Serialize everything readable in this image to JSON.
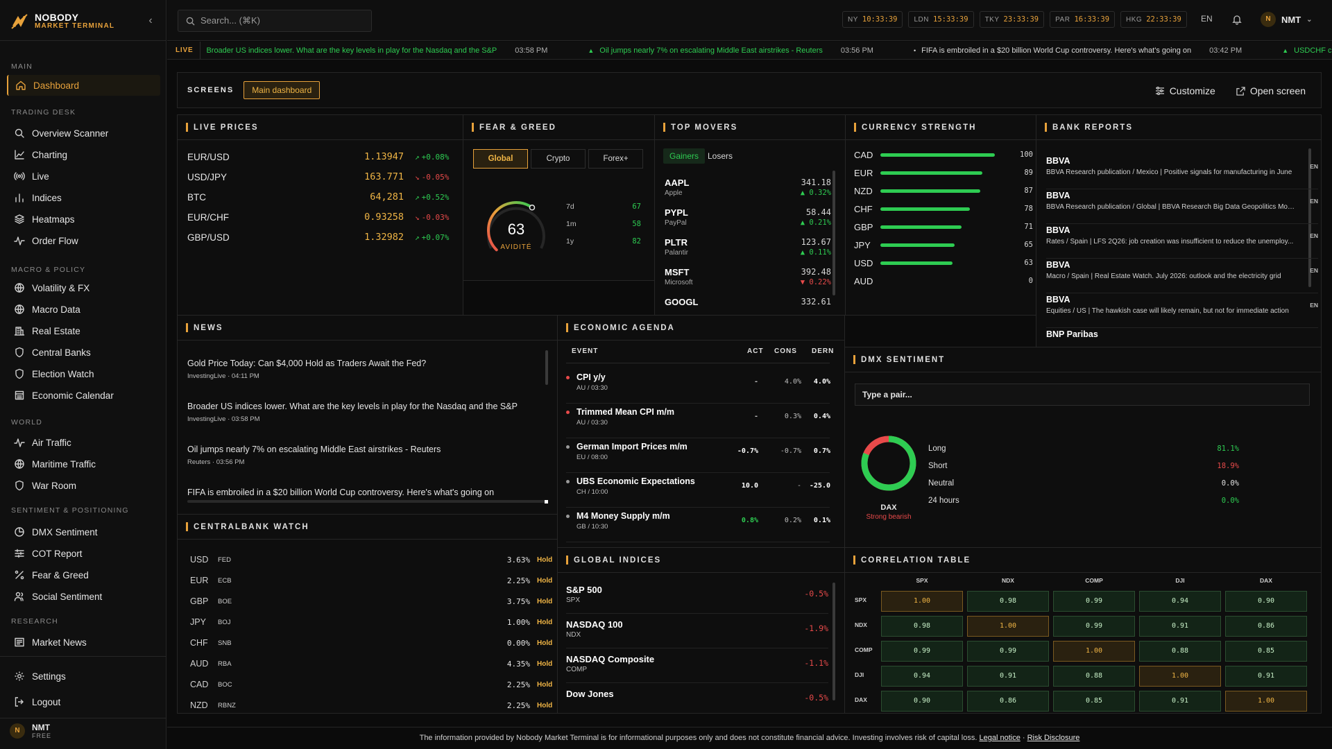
{
  "brand": {
    "name": "NOBODY",
    "sub": "MARKET TERMINAL"
  },
  "nav": {
    "sections": [
      "MAIN",
      "TRADING DESK",
      "MACRO & POLICY",
      "WORLD",
      "SENTIMENT & POSITIONING",
      "RESEARCH"
    ],
    "items": [
      "Dashboard",
      "Overview Scanner",
      "Charting",
      "Live",
      "Indices",
      "Heatmaps",
      "Order Flow",
      "Volatility & FX",
      "Macro Data",
      "Real Estate",
      "Central Banks",
      "Election Watch",
      "Economic Calendar",
      "Air Traffic",
      "Maritime Traffic",
      "War Room",
      "DMX Sentiment",
      "COT Report",
      "Fear & Greed",
      "Social Sentiment",
      "Market News"
    ],
    "settings": "Settings",
    "logout": "Logout"
  },
  "user": {
    "initial": "N",
    "name": "NMT",
    "plan": "FREE"
  },
  "search": {
    "placeholder": "Search... (⌘K)"
  },
  "clocks": [
    {
      "city": "NY",
      "time": "10:33:39"
    },
    {
      "city": "LDN",
      "time": "15:33:39"
    },
    {
      "city": "TKY",
      "time": "23:33:39"
    },
    {
      "city": "PAR",
      "time": "16:33:39"
    },
    {
      "city": "HKG",
      "time": "22:33:39"
    }
  ],
  "lang": "EN",
  "ticker": {
    "tag": "LIVE",
    "items": [
      {
        "text": "Broader US indices lower. What are the key levels in play for the Nasdaq and the S&P",
        "time": "03:58 PM"
      },
      {
        "text": "Oil jumps nearly 7% on escalating Middle East airstrikes - Reuters",
        "time": "03:56 PM"
      },
      {
        "text": "FIFA is embroiled in a $20 billion World Cup controversy. Here's what's going on",
        "time": "03:42 PM"
      },
      {
        "text": "USDCHF cont",
        "time": ""
      }
    ]
  },
  "screens": {
    "label": "SCREENS",
    "active": "Main dashboard",
    "customize": "Customize",
    "open": "Open screen"
  },
  "live_prices": {
    "title": "LIVE PRICES",
    "rows": [
      {
        "sym": "EUR/USD",
        "price": "1.13947",
        "chg": "+0.08%",
        "dir": "up"
      },
      {
        "sym": "USD/JPY",
        "price": "163.771",
        "chg": "-0.05%",
        "dir": "dn"
      },
      {
        "sym": "BTC",
        "price": "64,281",
        "chg": "+0.52%",
        "dir": "up"
      },
      {
        "sym": "EUR/CHF",
        "price": "0.93258",
        "chg": "-0.03%",
        "dir": "dn"
      },
      {
        "sym": "GBP/USD",
        "price": "1.32982",
        "chg": "+0.07%",
        "dir": "up"
      }
    ]
  },
  "fear_greed": {
    "title": "FEAR & GREED",
    "tabs": [
      "Global",
      "Crypto",
      "Forex+"
    ],
    "value": "63",
    "label": "AVIDITÉ",
    "gauge_fraction": 0.63,
    "history": [
      {
        "k": "7d",
        "v": "67"
      },
      {
        "k": "1m",
        "v": "58"
      },
      {
        "k": "1y",
        "v": "82"
      }
    ]
  },
  "top_movers": {
    "title": "TOP MOVERS",
    "tabs": [
      "Gainers",
      "Losers"
    ],
    "rows": [
      {
        "sym": "AAPL",
        "name": "Apple",
        "price": "341.18",
        "chg": "▲ 0.32%",
        "dir": "up"
      },
      {
        "sym": "PYPL",
        "name": "PayPal",
        "price": "58.44",
        "chg": "▲ 0.21%",
        "dir": "up"
      },
      {
        "sym": "PLTR",
        "name": "Palantir",
        "price": "123.67",
        "chg": "▲ 0.11%",
        "dir": "up"
      },
      {
        "sym": "MSFT",
        "name": "Microsoft",
        "price": "392.48",
        "chg": "▼ 0.22%",
        "dir": "dn"
      },
      {
        "sym": "GOOGL",
        "name": "",
        "price": "332.61",
        "chg": "",
        "dir": "up"
      }
    ]
  },
  "currency_strength": {
    "title": "CURRENCY STRENGTH",
    "rows": [
      {
        "ccy": "CAD",
        "v": 100
      },
      {
        "ccy": "EUR",
        "v": 89
      },
      {
        "ccy": "NZD",
        "v": 87
      },
      {
        "ccy": "CHF",
        "v": 78
      },
      {
        "ccy": "GBP",
        "v": 71
      },
      {
        "ccy": "JPY",
        "v": 65
      },
      {
        "ccy": "USD",
        "v": 63
      },
      {
        "ccy": "AUD",
        "v": 0
      }
    ]
  },
  "bank_reports": {
    "title": "BANK REPORTS",
    "rows": [
      {
        "bank": "BBVA",
        "desc": "BBVA Research publication / Mexico | Positive signals for manufacturing in June",
        "lang": "EN"
      },
      {
        "bank": "BBVA",
        "desc": "BBVA Research publication / Global | BBVA Research Big Data Geopolitics Mon...",
        "lang": "EN"
      },
      {
        "bank": "BBVA",
        "desc": "Rates / Spain | LFS 2Q26: job creation was insufficient to reduce the unemploy...",
        "lang": "EN"
      },
      {
        "bank": "BBVA",
        "desc": "Macro / Spain | Real Estate Watch. July 2026: outlook and the electricity grid",
        "lang": "EN"
      },
      {
        "bank": "BBVA",
        "desc": "Equities / US | The hawkish case will likely remain, but not for immediate action",
        "lang": "EN"
      },
      {
        "bank": "BNP Paribas",
        "desc": "",
        "lang": ""
      }
    ]
  },
  "news": {
    "title": "NEWS",
    "rows": [
      {
        "h": "Gold Price Today: Can $4,000 Hold as Traders Await the Fed?",
        "m": "InvestingLive · 04:11 PM"
      },
      {
        "h": "Broader US indices lower. What are the key levels in play for the Nasdaq and the S&P",
        "m": "InvestingLive · 03:58 PM"
      },
      {
        "h": "Oil jumps nearly 7% on escalating Middle East airstrikes - Reuters",
        "m": "Reuters · 03:56 PM"
      },
      {
        "h": "FIFA is embroiled in a $20 billion World Cup controversy. Here's what's going on",
        "m": ""
      }
    ]
  },
  "agenda": {
    "title": "ECONOMIC AGENDA",
    "cols": [
      "EVENT",
      "ACT",
      "CONS",
      "DERN"
    ],
    "rows": [
      {
        "e": "CPI y/y",
        "r": "AU / 03:30",
        "act": "-",
        "cons": "4.0%",
        "prev": "4.0%",
        "dot": "#e84a4a",
        "actc": "#bdbdbd"
      },
      {
        "e": "Trimmed Mean CPI m/m",
        "r": "AU / 03:30",
        "act": "-",
        "cons": "0.3%",
        "prev": "0.4%",
        "dot": "#e84a4a",
        "actc": "#bdbdbd"
      },
      {
        "e": "German Import Prices m/m",
        "r": "EU / 08:00",
        "act": "-0.7%",
        "cons": "-0.7%",
        "prev": "0.7%",
        "dot": "#9a9a9a",
        "actc": "#ffffff"
      },
      {
        "e": "UBS Economic Expectations",
        "r": "CH / 10:00",
        "act": "10.0",
        "cons": "-",
        "prev": "-25.0",
        "dot": "#9a9a9a",
        "actc": "#ffffff"
      },
      {
        "e": "M4 Money Supply m/m",
        "r": "GB / 10:30",
        "act": "0.8%",
        "cons": "0.2%",
        "prev": "0.1%",
        "dot": "#9a9a9a",
        "actc": "#2ecc52"
      }
    ]
  },
  "centralbank": {
    "title": "CENTRALBANK WATCH",
    "rows": [
      {
        "c": "USD",
        "b": "FED",
        "r": "3.63%",
        "s": "Hold"
      },
      {
        "c": "EUR",
        "b": "ECB",
        "r": "2.25%",
        "s": "Hold"
      },
      {
        "c": "GBP",
        "b": "BOE",
        "r": "3.75%",
        "s": "Hold"
      },
      {
        "c": "JPY",
        "b": "BOJ",
        "r": "1.00%",
        "s": "Hold"
      },
      {
        "c": "CHF",
        "b": "SNB",
        "r": "0.00%",
        "s": "Hold"
      },
      {
        "c": "AUD",
        "b": "RBA",
        "r": "4.35%",
        "s": "Hold"
      },
      {
        "c": "CAD",
        "b": "BOC",
        "r": "2.25%",
        "s": "Hold"
      },
      {
        "c": "NZD",
        "b": "RBNZ",
        "r": "2.25%",
        "s": "Hold"
      }
    ]
  },
  "global_indices": {
    "title": "GLOBAL INDICES",
    "rows": [
      {
        "n": "S&P 500",
        "s": "SPX",
        "c": "-0.5%"
      },
      {
        "n": "NASDAQ 100",
        "s": "NDX",
        "c": "-1.9%"
      },
      {
        "n": "NASDAQ Composite",
        "s": "COMP",
        "c": "-1.1%"
      },
      {
        "n": "Dow Jones",
        "s": "",
        "c": "-0.5%"
      }
    ]
  },
  "dmx": {
    "title": "DMX SENTIMENT",
    "placeholder": "Type a pair...",
    "pair": "DAX",
    "verdict": "Strong bearish",
    "long_fraction": 0.811,
    "rows": [
      {
        "k": "Long",
        "v": "81.1%",
        "c": "#2ecc52"
      },
      {
        "k": "Short",
        "v": "18.9%",
        "c": "#e84a4a"
      },
      {
        "k": "Neutral",
        "v": "0.0%",
        "c": "#e0e0e0"
      },
      {
        "k": "24 hours",
        "v": "0.0%",
        "c": "#2ecc52"
      }
    ]
  },
  "correlation": {
    "title": "CORRELATION TABLE",
    "labels": [
      "SPX",
      "NDX",
      "COMP",
      "DJI",
      "DAX"
    ],
    "matrix": [
      [
        "1.00",
        "0.98",
        "0.99",
        "0.94",
        "0.90"
      ],
      [
        "0.98",
        "1.00",
        "0.99",
        "0.91",
        "0.86"
      ],
      [
        "0.99",
        "0.99",
        "1.00",
        "0.88",
        "0.85"
      ],
      [
        "0.94",
        "0.91",
        "0.88",
        "1.00",
        "0.91"
      ],
      [
        "0.90",
        "0.86",
        "0.85",
        "0.91",
        "1.00"
      ]
    ]
  },
  "footer": {
    "text": "The information provided by Nobody Market Terminal is for informational purposes only and does not constitute financial advice. Investing involves risk of capital loss.",
    "notice": "Legal notice",
    "sep": "·",
    "risk": "Risk Disclosure"
  },
  "colors": {
    "accent": "#e8a23b",
    "up": "#2ecc52",
    "down": "#e84a4a",
    "bg": "#0b0b0b"
  }
}
